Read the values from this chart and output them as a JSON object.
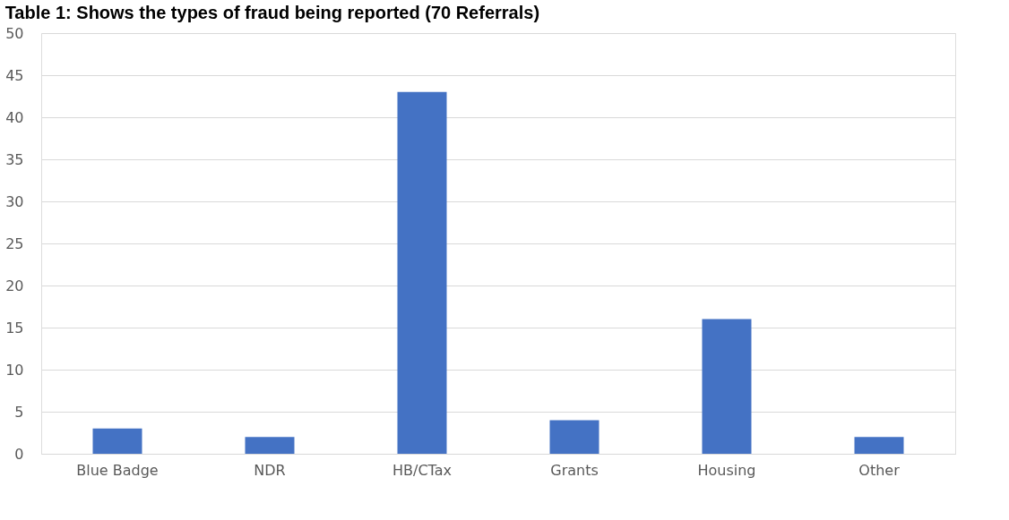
{
  "chart_data": {
    "type": "bar",
    "title": "Table 1:  Shows the types of fraud being reported  (70 Referrals)",
    "categories": [
      "Blue Badge",
      "NDR",
      "HB/CTax",
      "Grants",
      "Housing",
      "Other"
    ],
    "values": [
      3,
      2,
      43,
      4,
      16,
      2
    ],
    "color": "#4472c4",
    "ylim": [
      0,
      50
    ],
    "yticks": [
      0,
      5,
      10,
      15,
      20,
      25,
      30,
      35,
      40,
      45,
      50
    ],
    "grid": "y"
  }
}
